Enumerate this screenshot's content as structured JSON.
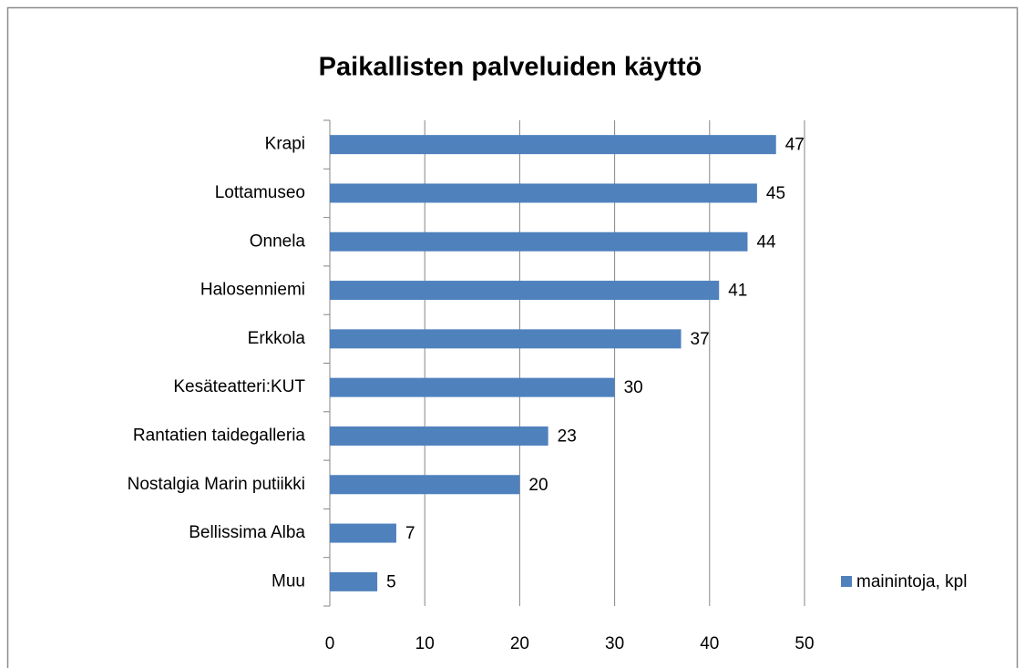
{
  "chart_data": {
    "type": "bar",
    "orientation": "horizontal",
    "title": "Paikallisten palveluiden käyttö",
    "categories": [
      "Krapi",
      "Lottamuseo",
      "Onnela",
      "Halosenniemi",
      "Erkkola",
      "Kesäteatteri:KUT",
      "Rantatien taidegalleria",
      "Nostalgia Marin putiikki",
      "Bellissima Alba",
      "Muu"
    ],
    "series": [
      {
        "name": "mainintoja, kpl",
        "color": "#4f81bd",
        "values": [
          47,
          45,
          44,
          41,
          37,
          30,
          23,
          20,
          7,
          5
        ]
      }
    ],
    "xlim": [
      0,
      50
    ],
    "xticks": [
      0,
      10,
      20,
      30,
      40,
      50
    ],
    "grid": true,
    "legend": "right"
  }
}
